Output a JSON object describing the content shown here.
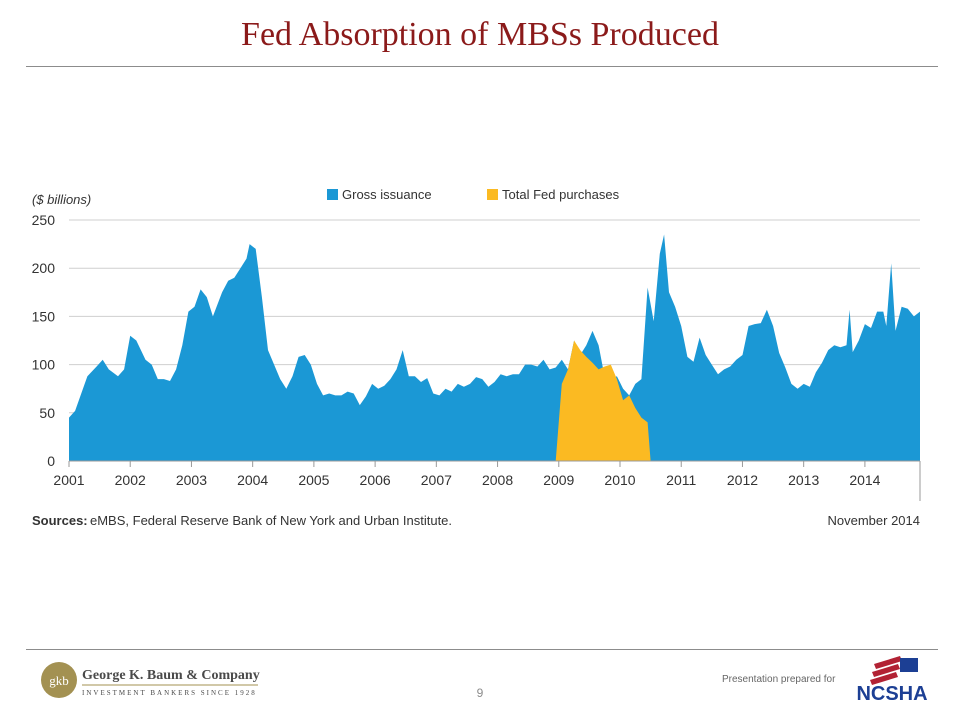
{
  "slide": {
    "title": "Fed Absorption of MBSs Produced",
    "page_number": "9",
    "prepared_for": "Presentation prepared for"
  },
  "footer": {
    "company_logo_text": "gkb",
    "company_name": "George K. Baum & Company",
    "company_tagline": "INVESTMENT BANKERS SINCE 1928",
    "client_logo_text": "NCSHA"
  },
  "colors": {
    "title": "#8b1a1a",
    "gross_issuance": "#1b98d5",
    "fed_purchases": "#fbba22",
    "grid": "#cfcfcf",
    "rule": "#8c8c8c"
  },
  "chart_data": {
    "type": "area",
    "unit_label": "($ billions)",
    "xlabel": "",
    "ylabel": "",
    "ylim": [
      0,
      250
    ],
    "yticks": [
      0,
      50,
      100,
      150,
      200,
      250
    ],
    "xlim": [
      2001.0,
      2014.9
    ],
    "xticks": [
      "2001",
      "2002",
      "2003",
      "2004",
      "2005",
      "2006",
      "2007",
      "2008",
      "2009",
      "2010",
      "2011",
      "2012",
      "2013",
      "2014"
    ],
    "grid": true,
    "legend_position": "top-center",
    "sources_label": "Sources:",
    "sources_text": "eMBS, Federal Reserve Bank of New York and Urban Institute.",
    "date_note": "November 2014",
    "series": [
      {
        "name": "Gross issuance",
        "color": "#1b98d5",
        "points": [
          [
            2001.0,
            45
          ],
          [
            2001.1,
            52
          ],
          [
            2001.3,
            88
          ],
          [
            2001.45,
            98
          ],
          [
            2001.55,
            105
          ],
          [
            2001.65,
            95
          ],
          [
            2001.8,
            88
          ],
          [
            2001.9,
            95
          ],
          [
            2002.0,
            130
          ],
          [
            2002.1,
            125
          ],
          [
            2002.25,
            105
          ],
          [
            2002.35,
            100
          ],
          [
            2002.45,
            85
          ],
          [
            2002.55,
            85
          ],
          [
            2002.65,
            83
          ],
          [
            2002.75,
            95
          ],
          [
            2002.85,
            120
          ],
          [
            2002.95,
            155
          ],
          [
            2003.05,
            160
          ],
          [
            2003.15,
            178
          ],
          [
            2003.25,
            170
          ],
          [
            2003.35,
            150
          ],
          [
            2003.5,
            175
          ],
          [
            2003.6,
            187
          ],
          [
            2003.7,
            190
          ],
          [
            2003.8,
            200
          ],
          [
            2003.9,
            210
          ],
          [
            2003.95,
            225
          ],
          [
            2004.05,
            220
          ],
          [
            2004.15,
            170
          ],
          [
            2004.25,
            115
          ],
          [
            2004.35,
            100
          ],
          [
            2004.45,
            85
          ],
          [
            2004.55,
            75
          ],
          [
            2004.65,
            88
          ],
          [
            2004.75,
            108
          ],
          [
            2004.85,
            110
          ],
          [
            2004.95,
            100
          ],
          [
            2005.05,
            80
          ],
          [
            2005.15,
            68
          ],
          [
            2005.25,
            70
          ],
          [
            2005.35,
            68
          ],
          [
            2005.45,
            68
          ],
          [
            2005.55,
            72
          ],
          [
            2005.65,
            70
          ],
          [
            2005.75,
            58
          ],
          [
            2005.85,
            67
          ],
          [
            2005.95,
            80
          ],
          [
            2006.05,
            75
          ],
          [
            2006.15,
            78
          ],
          [
            2006.25,
            85
          ],
          [
            2006.35,
            95
          ],
          [
            2006.45,
            115
          ],
          [
            2006.55,
            88
          ],
          [
            2006.65,
            88
          ],
          [
            2006.75,
            82
          ],
          [
            2006.85,
            86
          ],
          [
            2006.95,
            70
          ],
          [
            2007.05,
            68
          ],
          [
            2007.15,
            75
          ],
          [
            2007.25,
            72
          ],
          [
            2007.35,
            80
          ],
          [
            2007.45,
            77
          ],
          [
            2007.55,
            80
          ],
          [
            2007.65,
            87
          ],
          [
            2007.75,
            85
          ],
          [
            2007.85,
            77
          ],
          [
            2007.95,
            82
          ],
          [
            2008.05,
            90
          ],
          [
            2008.15,
            88
          ],
          [
            2008.25,
            90
          ],
          [
            2008.35,
            90
          ],
          [
            2008.45,
            100
          ],
          [
            2008.55,
            100
          ],
          [
            2008.65,
            98
          ],
          [
            2008.75,
            105
          ],
          [
            2008.85,
            95
          ],
          [
            2008.95,
            97
          ],
          [
            2009.05,
            105
          ],
          [
            2009.15,
            95
          ],
          [
            2009.25,
            125
          ],
          [
            2009.35,
            110
          ],
          [
            2009.45,
            120
          ],
          [
            2009.55,
            135
          ],
          [
            2009.65,
            120
          ],
          [
            2009.75,
            87
          ],
          [
            2009.85,
            85
          ],
          [
            2009.95,
            88
          ],
          [
            2010.05,
            75
          ],
          [
            2010.15,
            68
          ],
          [
            2010.25,
            80
          ],
          [
            2010.35,
            85
          ],
          [
            2010.45,
            180
          ],
          [
            2010.55,
            145
          ],
          [
            2010.65,
            215
          ],
          [
            2010.72,
            235
          ],
          [
            2010.8,
            175
          ],
          [
            2010.9,
            160
          ],
          [
            2011.0,
            140
          ],
          [
            2011.1,
            108
          ],
          [
            2011.2,
            103
          ],
          [
            2011.3,
            128
          ],
          [
            2011.4,
            110
          ],
          [
            2011.5,
            100
          ],
          [
            2011.6,
            90
          ],
          [
            2011.7,
            95
          ],
          [
            2011.8,
            98
          ],
          [
            2011.9,
            105
          ],
          [
            2012.0,
            110
          ],
          [
            2012.1,
            140
          ],
          [
            2012.2,
            142
          ],
          [
            2012.3,
            143
          ],
          [
            2012.4,
            157
          ],
          [
            2012.5,
            140
          ],
          [
            2012.6,
            112
          ],
          [
            2012.7,
            97
          ],
          [
            2012.8,
            80
          ],
          [
            2012.9,
            75
          ],
          [
            2013.0,
            80
          ],
          [
            2013.1,
            77
          ],
          [
            2013.2,
            92
          ],
          [
            2013.3,
            102
          ],
          [
            2013.4,
            115
          ],
          [
            2013.5,
            120
          ],
          [
            2013.6,
            118
          ],
          [
            2013.7,
            120
          ],
          [
            2013.75,
            157
          ],
          [
            2013.8,
            113
          ],
          [
            2013.9,
            125
          ],
          [
            2014.0,
            142
          ],
          [
            2014.1,
            138
          ],
          [
            2014.2,
            155
          ],
          [
            2014.3,
            155
          ],
          [
            2014.35,
            140
          ],
          [
            2014.43,
            205
          ],
          [
            2014.5,
            135
          ],
          [
            2014.6,
            160
          ],
          [
            2014.7,
            158
          ],
          [
            2014.8,
            150
          ],
          [
            2014.9,
            155
          ]
        ]
      },
      {
        "name": "Total Fed purchases",
        "color": "#fbba22",
        "points": [
          [
            2008.95,
            0
          ],
          [
            2009.05,
            80
          ],
          [
            2009.15,
            95
          ],
          [
            2009.25,
            125
          ],
          [
            2009.35,
            115
          ],
          [
            2009.45,
            108
          ],
          [
            2009.55,
            102
          ],
          [
            2009.65,
            95
          ],
          [
            2009.75,
            98
          ],
          [
            2009.85,
            100
          ],
          [
            2009.95,
            85
          ],
          [
            2010.05,
            63
          ],
          [
            2010.15,
            68
          ],
          [
            2010.25,
            55
          ],
          [
            2010.35,
            45
          ],
          [
            2010.45,
            40
          ],
          [
            2010.5,
            0
          ]
        ]
      }
    ]
  }
}
